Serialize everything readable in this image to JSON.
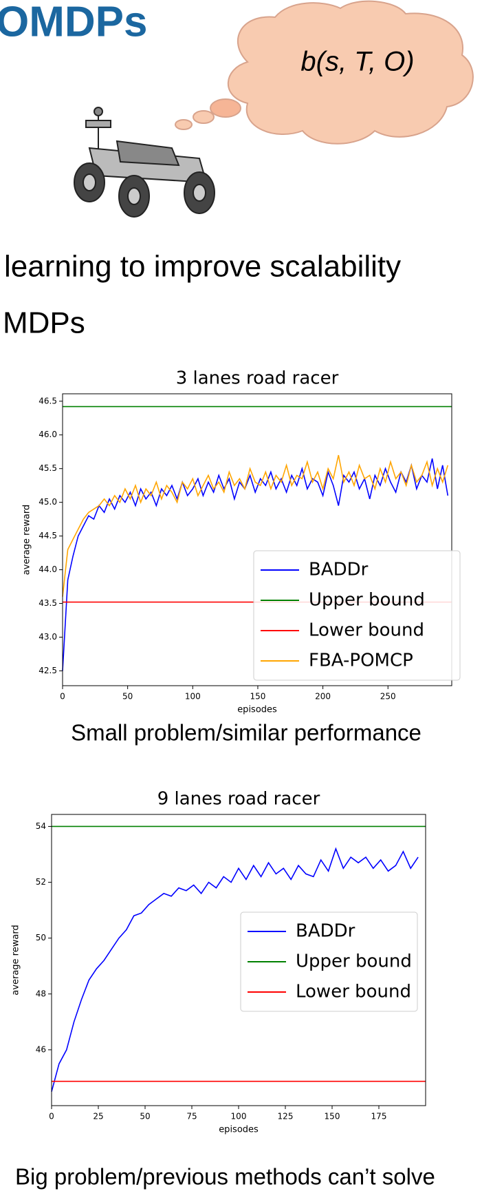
{
  "slide": {
    "title": "OMDPs",
    "thought": "b(s, T, O)",
    "line1": "learning to improve scalability",
    "line2": "MDPs",
    "caption1": "Small problem/similar performance",
    "caption2": "Big problem/previous methods can’t solve"
  },
  "chart_data": [
    {
      "type": "line",
      "title": "3 lanes road racer",
      "xlabel": "episodes",
      "ylabel": "average reward",
      "xlim": [
        0,
        299
      ],
      "ylim": [
        42.28,
        46.61
      ],
      "xticks": [
        0,
        50,
        100,
        150,
        200,
        250
      ],
      "yticks": [
        42.5,
        {
          "value": 43,
          "label": "43.0"
        },
        43.5,
        {
          "value": 44,
          "label": "44.0"
        },
        44.5,
        {
          "value": 45,
          "label": "45.0"
        },
        45.5,
        {
          "value": 46,
          "label": "46.0"
        },
        46.5
      ],
      "legend": "lower-right",
      "series": [
        {
          "name": "BADDr",
          "color": "#0000ff",
          "x": [
            0,
            4,
            8,
            12,
            16,
            20,
            24,
            28,
            32,
            36,
            40,
            44,
            48,
            52,
            56,
            60,
            64,
            68,
            72,
            76,
            80,
            84,
            88,
            92,
            96,
            100,
            104,
            108,
            112,
            116,
            120,
            124,
            128,
            132,
            136,
            140,
            144,
            148,
            152,
            156,
            160,
            164,
            168,
            172,
            176,
            180,
            184,
            188,
            192,
            196,
            200,
            204,
            208,
            212,
            216,
            220,
            224,
            228,
            232,
            236,
            240,
            244,
            248,
            252,
            256,
            260,
            264,
            268,
            272,
            276,
            280,
            284,
            288,
            292,
            296
          ],
          "values": [
            42.5,
            43.85,
            44.2,
            44.5,
            44.65,
            44.8,
            44.75,
            44.95,
            44.85,
            45.05,
            44.9,
            45.1,
            45.0,
            45.15,
            44.95,
            45.2,
            45.05,
            45.15,
            44.95,
            45.2,
            45.1,
            45.25,
            45.05,
            45.3,
            45.1,
            45.2,
            45.35,
            45.1,
            45.3,
            45.15,
            45.4,
            45.2,
            45.35,
            45.05,
            45.3,
            45.2,
            45.4,
            45.15,
            45.35,
            45.25,
            45.45,
            45.2,
            45.35,
            45.15,
            45.4,
            45.25,
            45.5,
            45.2,
            45.35,
            45.3,
            45.1,
            45.45,
            45.25,
            44.95,
            45.4,
            45.3,
            45.45,
            45.2,
            45.35,
            45.05,
            45.4,
            45.25,
            45.5,
            45.3,
            45.15,
            45.45,
            45.3,
            45.55,
            45.2,
            45.4,
            45.3,
            45.65,
            45.2,
            45.55,
            45.1
          ]
        },
        {
          "name": "Upper bound",
          "color": "#008000",
          "x": [
            0,
            299
          ],
          "values": [
            46.42,
            46.42
          ]
        },
        {
          "name": "Lower bound",
          "color": "#ff0000",
          "x": [
            0,
            299
          ],
          "values": [
            43.52,
            43.52
          ]
        },
        {
          "name": "FBA-POMCP",
          "color": "#ffa500",
          "x": [
            0,
            4,
            8,
            12,
            16,
            20,
            24,
            28,
            32,
            36,
            40,
            44,
            48,
            52,
            56,
            60,
            64,
            68,
            72,
            76,
            80,
            84,
            88,
            92,
            96,
            100,
            104,
            108,
            112,
            116,
            120,
            124,
            128,
            132,
            136,
            140,
            144,
            148,
            152,
            156,
            160,
            164,
            168,
            172,
            176,
            180,
            184,
            188,
            192,
            196,
            200,
            204,
            208,
            212,
            216,
            220,
            224,
            228,
            232,
            236,
            240,
            244,
            248,
            252,
            256,
            260,
            264,
            268,
            272,
            276,
            280,
            284,
            288,
            292,
            296
          ],
          "values": [
            43.6,
            44.3,
            44.45,
            44.6,
            44.75,
            44.85,
            44.9,
            44.95,
            45.05,
            44.95,
            45.1,
            45.0,
            45.2,
            45.05,
            45.25,
            45.0,
            45.2,
            45.1,
            45.3,
            45.05,
            45.25,
            45.15,
            45.0,
            45.3,
            45.2,
            45.35,
            45.1,
            45.25,
            45.4,
            45.2,
            45.3,
            45.15,
            45.45,
            45.25,
            45.35,
            45.2,
            45.5,
            45.3,
            45.25,
            45.45,
            45.2,
            45.4,
            45.3,
            45.55,
            45.25,
            45.4,
            45.35,
            45.6,
            45.3,
            45.45,
            45.2,
            45.5,
            45.35,
            45.7,
            45.3,
            45.45,
            45.25,
            45.55,
            45.35,
            45.4,
            45.2,
            45.5,
            45.3,
            45.6,
            45.35,
            45.45,
            45.25,
            45.55,
            45.3,
            45.4,
            45.6,
            45.25,
            45.5,
            45.3,
            45.55
          ]
        }
      ]
    },
    {
      "type": "line",
      "title": "9 lanes road racer",
      "xlabel": "episodes",
      "ylabel": "average reward",
      "xlim": [
        0,
        200
      ],
      "ylim": [
        44.0,
        54.43
      ],
      "xticks": [
        0,
        25,
        50,
        75,
        100,
        125,
        150,
        175
      ],
      "yticks": [
        46,
        48,
        50,
        52,
        54
      ],
      "legend": "center-right",
      "series": [
        {
          "name": "BADDr",
          "color": "#0000ff",
          "x": [
            0,
            4,
            8,
            12,
            16,
            20,
            24,
            28,
            32,
            36,
            40,
            44,
            48,
            52,
            56,
            60,
            64,
            68,
            72,
            76,
            80,
            84,
            88,
            92,
            96,
            100,
            104,
            108,
            112,
            116,
            120,
            124,
            128,
            132,
            136,
            140,
            144,
            148,
            152,
            156,
            160,
            164,
            168,
            172,
            176,
            180,
            184,
            188,
            192,
            196
          ],
          "values": [
            44.5,
            45.5,
            46.0,
            47.0,
            47.8,
            48.5,
            48.9,
            49.2,
            49.6,
            50.0,
            50.3,
            50.8,
            50.9,
            51.2,
            51.4,
            51.6,
            51.5,
            51.8,
            51.7,
            51.9,
            51.6,
            52.0,
            51.8,
            52.2,
            52.0,
            52.5,
            52.1,
            52.6,
            52.2,
            52.7,
            52.3,
            52.5,
            52.1,
            52.6,
            52.3,
            52.2,
            52.8,
            52.4,
            53.2,
            52.5,
            52.9,
            52.7,
            52.9,
            52.5,
            52.8,
            52.4,
            52.6,
            53.1,
            52.5,
            52.9
          ]
        },
        {
          "name": "Upper bound",
          "color": "#008000",
          "x": [
            0,
            200
          ],
          "values": [
            54.0,
            54.0
          ]
        },
        {
          "name": "Lower bound",
          "color": "#ff0000",
          "x": [
            0,
            200
          ],
          "values": [
            44.87,
            44.87
          ]
        }
      ]
    }
  ]
}
